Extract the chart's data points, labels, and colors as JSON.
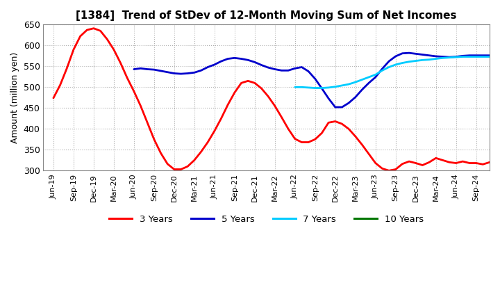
{
  "title": "[1384]  Trend of StDev of 12-Month Moving Sum of Net Incomes",
  "ylabel": "Amount (million yen)",
  "ylim": [
    300,
    650
  ],
  "yticks": [
    300,
    350,
    400,
    450,
    500,
    550,
    600,
    650
  ],
  "background_color": "#ffffff",
  "grid_color": "#b0b0b0",
  "series": {
    "3 Years": {
      "color": "#ff0000",
      "x_indices": [
        0,
        1,
        2,
        3,
        4,
        5,
        6,
        7,
        8,
        9,
        10,
        11,
        12,
        13,
        14,
        15,
        16,
        17,
        18,
        19,
        20,
        21,
        22,
        23,
        24,
        25,
        26,
        27,
        28,
        29,
        30,
        31,
        32,
        33,
        34,
        35,
        36,
        37,
        38,
        39,
        40,
        41,
        42,
        43,
        44,
        45,
        46,
        47,
        48,
        49,
        50,
        51,
        52,
        53,
        54,
        55,
        56,
        57,
        58,
        59,
        60,
        61,
        62,
        63,
        64,
        65
      ],
      "y": [
        474,
        505,
        545,
        590,
        622,
        637,
        641,
        635,
        615,
        590,
        558,
        522,
        490,
        455,
        415,
        375,
        342,
        316,
        303,
        303,
        310,
        325,
        345,
        368,
        395,
        425,
        458,
        487,
        510,
        515,
        510,
        497,
        478,
        455,
        428,
        400,
        376,
        368,
        368,
        375,
        390,
        415,
        418,
        412,
        400,
        382,
        362,
        340,
        318,
        305,
        300,
        303,
        316,
        322,
        318,
        313,
        320,
        330,
        325,
        320,
        318,
        322,
        318,
        318,
        315,
        320
      ]
    },
    "5 Years": {
      "color": "#0000cc",
      "x_indices": [
        12,
        13,
        14,
        15,
        16,
        17,
        18,
        19,
        20,
        21,
        22,
        23,
        24,
        25,
        26,
        27,
        28,
        29,
        30,
        31,
        32,
        33,
        34,
        35,
        36,
        37,
        38,
        39,
        40,
        41,
        42,
        43,
        44,
        45,
        46,
        47,
        48,
        49,
        50,
        51,
        52,
        53,
        54,
        55,
        56,
        57,
        58,
        59,
        60,
        61,
        62,
        63,
        64,
        65
      ],
      "y": [
        543,
        545,
        543,
        542,
        539,
        536,
        533,
        532,
        533,
        535,
        540,
        548,
        554,
        562,
        568,
        570,
        568,
        565,
        560,
        553,
        547,
        543,
        540,
        540,
        545,
        548,
        538,
        520,
        497,
        473,
        452,
        452,
        462,
        476,
        494,
        510,
        524,
        544,
        562,
        574,
        581,
        582,
        580,
        578,
        576,
        574,
        573,
        572,
        573,
        575,
        576,
        576,
        576,
        576
      ]
    },
    "7 Years": {
      "color": "#00ccff",
      "x_indices": [
        36,
        37,
        38,
        39,
        40,
        41,
        42,
        43,
        44,
        45,
        46,
        47,
        48,
        49,
        50,
        51,
        52,
        53,
        54,
        55,
        56,
        57,
        58,
        59,
        60,
        61,
        62,
        63,
        64,
        65
      ],
      "y": [
        500,
        500,
        499,
        498,
        498,
        499,
        501,
        504,
        507,
        512,
        518,
        524,
        530,
        540,
        548,
        554,
        558,
        561,
        563,
        565,
        566,
        568,
        570,
        571,
        572,
        573,
        573,
        573,
        573,
        573
      ]
    },
    "10 Years": {
      "color": "#007700",
      "x_indices": [],
      "y": []
    }
  },
  "xtick_labels": [
    "Jun-19",
    "Sep-19",
    "Dec-19",
    "Mar-20",
    "Jun-20",
    "Sep-20",
    "Dec-20",
    "Mar-21",
    "Jun-21",
    "Sep-21",
    "Dec-21",
    "Mar-22",
    "Jun-22",
    "Sep-22",
    "Dec-22",
    "Mar-23",
    "Jun-23",
    "Sep-23",
    "Dec-23",
    "Mar-24",
    "Jun-24",
    "Sep-24"
  ],
  "xtick_positions": [
    0,
    3,
    6,
    9,
    12,
    15,
    18,
    21,
    24,
    27,
    30,
    33,
    36,
    39,
    42,
    45,
    48,
    51,
    54,
    57,
    60,
    63
  ]
}
